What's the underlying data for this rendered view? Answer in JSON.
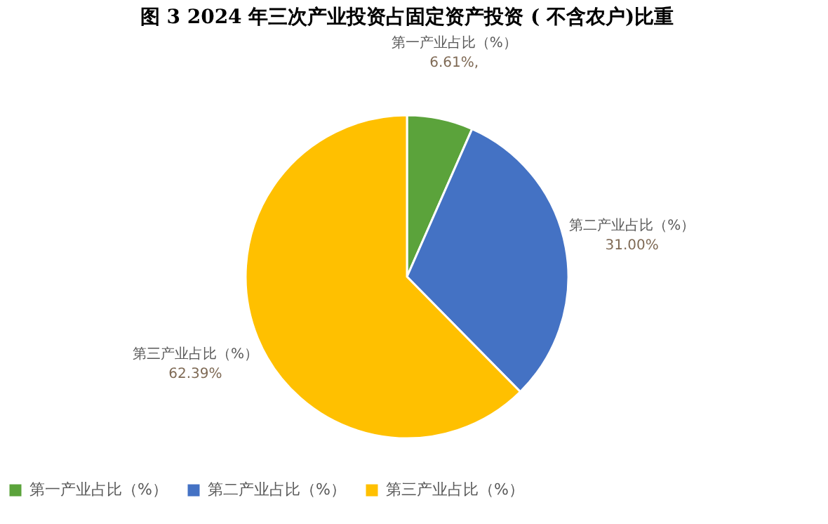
{
  "chart_data": {
    "type": "pie",
    "title": "图 3   2024 年三次产业投资占固定资产投资 ( 不含农户)比重",
    "categories": [
      "第一产业占比（%）",
      "第二产业占比（%）",
      "第三产业占比（%）"
    ],
    "values": [
      6.61,
      31.0,
      62.39
    ],
    "colors": [
      "#5ba33b",
      "#4472c4",
      "#ffc000"
    ],
    "value_labels": [
      "6.61%,",
      "31.00%",
      "62.39%"
    ],
    "legend": "bottom"
  }
}
